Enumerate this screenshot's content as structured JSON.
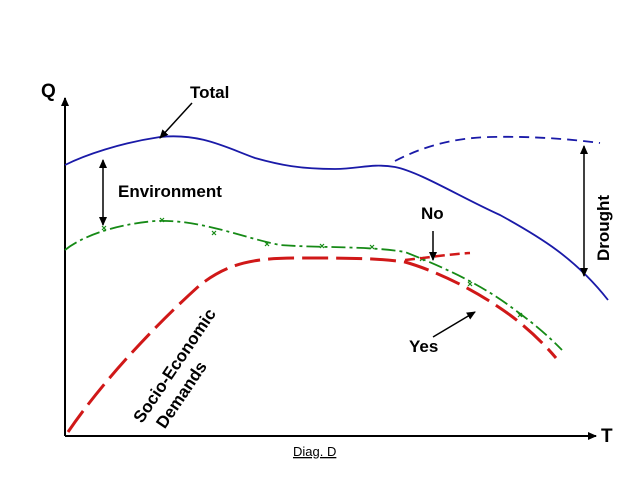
{
  "axes": {
    "y_label": "Q",
    "x_label": "T"
  },
  "curves": {
    "total": {
      "label": "Total"
    },
    "environment": {
      "label": "Environment"
    },
    "socio_economic": {
      "label_line1": "Socio-Economic",
      "label_line2": "Demands"
    },
    "drought": {
      "label": "Drought"
    },
    "no_branch": {
      "label": "No"
    },
    "yes_branch": {
      "label": "Yes"
    }
  },
  "caption": "Diag. D",
  "colors": {
    "background": "#ffffff",
    "axes": "#000000",
    "total_curve": "#1a1aa8",
    "environment_curve": "#168a16",
    "socio_economic_curve": "#d01818",
    "annotation_arrows": "#000000"
  }
}
